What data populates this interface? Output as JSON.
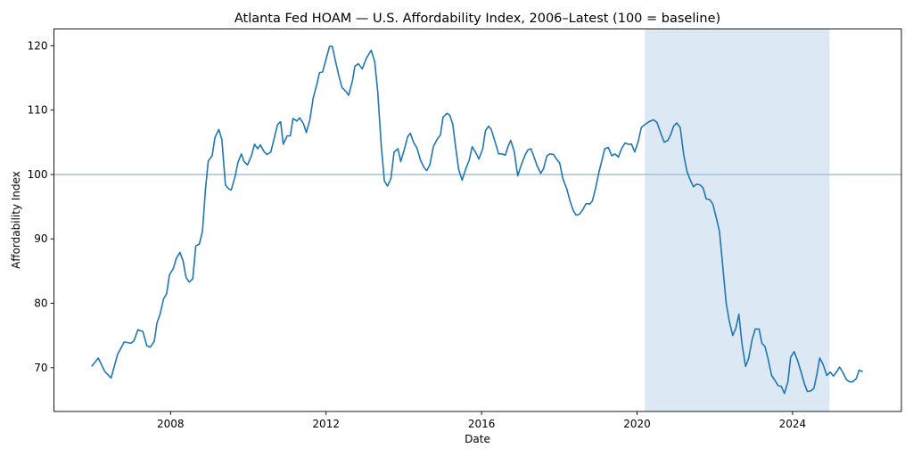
{
  "chart_data": {
    "type": "line",
    "title": "Atlanta Fed HOAM — U.S. Affordability Index, 2006–Latest (100 = baseline)",
    "xlabel": "Date",
    "ylabel": "Affordability Index",
    "xlim": [
      2005.0,
      2026.8
    ],
    "ylim": [
      63.2,
      122.6
    ],
    "xticks": [
      2008,
      2012,
      2016,
      2020,
      2024
    ],
    "xtick_labels": [
      "2008",
      "2012",
      "2016",
      "2020",
      "2024"
    ],
    "yticks": [
      70,
      80,
      90,
      100,
      110,
      120
    ],
    "ytick_labels": [
      "70",
      "80",
      "90",
      "100",
      "110",
      "120"
    ],
    "grid": false,
    "reference_line": {
      "y": 100,
      "color": "#9cc3df"
    },
    "shaded_region": {
      "x_start": 2020.2,
      "x_end": 2024.95,
      "color": "#dce8f3"
    },
    "series": [
      {
        "name": "Affordability Index",
        "color": "#1f77b4",
        "points": [
          [
            2005.97,
            70.2
          ],
          [
            2006.14,
            71.5
          ],
          [
            2006.31,
            69.4
          ],
          [
            2006.47,
            68.4
          ],
          [
            2006.64,
            72.1
          ],
          [
            2006.81,
            74.0
          ],
          [
            2006.98,
            73.8
          ],
          [
            2007.06,
            74.2
          ],
          [
            2007.16,
            75.9
          ],
          [
            2007.29,
            75.6
          ],
          [
            2007.39,
            73.4
          ],
          [
            2007.48,
            73.2
          ],
          [
            2007.58,
            74.1
          ],
          [
            2007.65,
            76.9
          ],
          [
            2007.73,
            78.3
          ],
          [
            2007.82,
            80.7
          ],
          [
            2007.9,
            81.5
          ],
          [
            2007.97,
            84.4
          ],
          [
            2008.07,
            85.4
          ],
          [
            2008.15,
            87.0
          ],
          [
            2008.24,
            87.9
          ],
          [
            2008.32,
            86.6
          ],
          [
            2008.4,
            84.0
          ],
          [
            2008.48,
            83.3
          ],
          [
            2008.57,
            83.8
          ],
          [
            2008.65,
            88.9
          ],
          [
            2008.74,
            89.2
          ],
          [
            2008.82,
            91.2
          ],
          [
            2008.9,
            97.8
          ],
          [
            2008.97,
            102.1
          ],
          [
            2009.07,
            102.9
          ],
          [
            2009.14,
            105.7
          ],
          [
            2009.24,
            107.0
          ],
          [
            2009.32,
            105.4
          ],
          [
            2009.41,
            98.4
          ],
          [
            2009.49,
            97.8
          ],
          [
            2009.56,
            97.6
          ],
          [
            2009.66,
            99.7
          ],
          [
            2009.73,
            101.8
          ],
          [
            2009.82,
            103.2
          ],
          [
            2009.89,
            102.0
          ],
          [
            2009.98,
            101.5
          ],
          [
            2010.08,
            102.9
          ],
          [
            2010.16,
            104.7
          ],
          [
            2010.24,
            104.0
          ],
          [
            2010.31,
            104.6
          ],
          [
            2010.41,
            103.5
          ],
          [
            2010.48,
            103.1
          ],
          [
            2010.58,
            103.5
          ],
          [
            2010.67,
            105.7
          ],
          [
            2010.75,
            107.7
          ],
          [
            2010.83,
            108.2
          ],
          [
            2010.9,
            104.7
          ],
          [
            2011.0,
            106.0
          ],
          [
            2011.08,
            106.0
          ],
          [
            2011.15,
            108.7
          ],
          [
            2011.25,
            108.3
          ],
          [
            2011.32,
            108.8
          ],
          [
            2011.42,
            107.9
          ],
          [
            2011.49,
            106.5
          ],
          [
            2011.58,
            108.4
          ],
          [
            2011.67,
            111.9
          ],
          [
            2011.76,
            113.9
          ],
          [
            2011.83,
            115.8
          ],
          [
            2011.91,
            115.9
          ],
          [
            2012.0,
            117.9
          ],
          [
            2012.09,
            119.9
          ],
          [
            2012.16,
            119.9
          ],
          [
            2012.25,
            117.4
          ],
          [
            2012.33,
            115.3
          ],
          [
            2012.41,
            113.5
          ],
          [
            2012.51,
            112.9
          ],
          [
            2012.58,
            112.3
          ],
          [
            2012.68,
            114.6
          ],
          [
            2012.74,
            116.8
          ],
          [
            2012.83,
            117.2
          ],
          [
            2012.93,
            116.4
          ],
          [
            2013.04,
            118.1
          ],
          [
            2013.16,
            119.3
          ],
          [
            2013.25,
            117.6
          ],
          [
            2013.33,
            112.8
          ],
          [
            2013.42,
            104.5
          ],
          [
            2013.5,
            99.0
          ],
          [
            2013.58,
            98.2
          ],
          [
            2013.67,
            99.4
          ],
          [
            2013.75,
            103.5
          ],
          [
            2013.85,
            104.0
          ],
          [
            2013.92,
            102.0
          ],
          [
            2014.01,
            103.8
          ],
          [
            2014.1,
            105.9
          ],
          [
            2014.17,
            106.4
          ],
          [
            2014.25,
            105.0
          ],
          [
            2014.34,
            104.1
          ],
          [
            2014.43,
            102.2
          ],
          [
            2014.52,
            101.1
          ],
          [
            2014.59,
            100.6
          ],
          [
            2014.67,
            101.5
          ],
          [
            2014.76,
            104.3
          ],
          [
            2014.86,
            105.5
          ],
          [
            2014.94,
            106.1
          ],
          [
            2015.01,
            108.9
          ],
          [
            2015.11,
            109.5
          ],
          [
            2015.18,
            109.2
          ],
          [
            2015.26,
            107.8
          ],
          [
            2015.34,
            104.0
          ],
          [
            2015.41,
            100.8
          ],
          [
            2015.5,
            99.1
          ],
          [
            2015.59,
            100.8
          ],
          [
            2015.68,
            102.2
          ],
          [
            2015.76,
            104.3
          ],
          [
            2015.85,
            103.4
          ],
          [
            2015.93,
            102.4
          ],
          [
            2016.03,
            104.0
          ],
          [
            2016.1,
            106.8
          ],
          [
            2016.18,
            107.5
          ],
          [
            2016.25,
            107.0
          ],
          [
            2016.35,
            105.0
          ],
          [
            2016.44,
            103.2
          ],
          [
            2016.52,
            103.2
          ],
          [
            2016.61,
            103.0
          ],
          [
            2016.69,
            104.5
          ],
          [
            2016.75,
            105.3
          ],
          [
            2016.84,
            103.6
          ],
          [
            2016.93,
            99.8
          ],
          [
            2017.02,
            101.5
          ],
          [
            2017.12,
            103.0
          ],
          [
            2017.19,
            103.8
          ],
          [
            2017.27,
            104.0
          ],
          [
            2017.35,
            102.7
          ],
          [
            2017.42,
            101.5
          ],
          [
            2017.52,
            100.2
          ],
          [
            2017.59,
            100.8
          ],
          [
            2017.68,
            102.9
          ],
          [
            2017.76,
            103.2
          ],
          [
            2017.85,
            103.1
          ],
          [
            2017.94,
            102.3
          ],
          [
            2018.01,
            101.8
          ],
          [
            2018.09,
            99.4
          ],
          [
            2018.19,
            97.8
          ],
          [
            2018.28,
            95.8
          ],
          [
            2018.36,
            94.4
          ],
          [
            2018.43,
            93.7
          ],
          [
            2018.51,
            93.8
          ],
          [
            2018.6,
            94.5
          ],
          [
            2018.69,
            95.5
          ],
          [
            2018.78,
            95.4
          ],
          [
            2018.85,
            95.9
          ],
          [
            2018.93,
            97.8
          ],
          [
            2019.02,
            100.4
          ],
          [
            2019.1,
            102.3
          ],
          [
            2019.17,
            104.0
          ],
          [
            2019.26,
            104.2
          ],
          [
            2019.35,
            102.9
          ],
          [
            2019.43,
            103.2
          ],
          [
            2019.52,
            102.7
          ],
          [
            2019.6,
            104.0
          ],
          [
            2019.69,
            104.9
          ],
          [
            2019.77,
            104.7
          ],
          [
            2019.86,
            104.7
          ],
          [
            2019.94,
            103.5
          ],
          [
            2020.03,
            105.1
          ],
          [
            2020.11,
            107.3
          ],
          [
            2020.21,
            107.8
          ],
          [
            2020.31,
            108.2
          ],
          [
            2020.42,
            108.5
          ],
          [
            2020.51,
            108.1
          ],
          [
            2020.61,
            106.4
          ],
          [
            2020.7,
            105.0
          ],
          [
            2020.79,
            105.3
          ],
          [
            2020.86,
            106.1
          ],
          [
            2020.94,
            107.5
          ],
          [
            2021.02,
            108.0
          ],
          [
            2021.11,
            107.3
          ],
          [
            2021.2,
            103.1
          ],
          [
            2021.28,
            100.6
          ],
          [
            2021.35,
            99.4
          ],
          [
            2021.45,
            98.1
          ],
          [
            2021.53,
            98.5
          ],
          [
            2021.62,
            98.4
          ],
          [
            2021.7,
            97.9
          ],
          [
            2021.78,
            96.2
          ],
          [
            2021.87,
            96.1
          ],
          [
            2021.95,
            95.4
          ],
          [
            2022.04,
            93.2
          ],
          [
            2022.12,
            91.2
          ],
          [
            2022.2,
            86.1
          ],
          [
            2022.29,
            80.1
          ],
          [
            2022.37,
            77.3
          ],
          [
            2022.46,
            75.0
          ],
          [
            2022.54,
            76.1
          ],
          [
            2022.62,
            78.3
          ],
          [
            2022.7,
            73.7
          ],
          [
            2022.79,
            70.2
          ],
          [
            2022.87,
            71.4
          ],
          [
            2022.96,
            74.4
          ],
          [
            2023.04,
            76.0
          ],
          [
            2023.14,
            76.0
          ],
          [
            2023.21,
            73.8
          ],
          [
            2023.29,
            73.3
          ],
          [
            2023.37,
            71.4
          ],
          [
            2023.46,
            68.8
          ],
          [
            2023.56,
            67.9
          ],
          [
            2023.63,
            67.2
          ],
          [
            2023.71,
            67.1
          ],
          [
            2023.79,
            66.0
          ],
          [
            2023.88,
            67.8
          ],
          [
            2023.95,
            71.6
          ],
          [
            2024.04,
            72.5
          ],
          [
            2024.13,
            71.1
          ],
          [
            2024.22,
            69.3
          ],
          [
            2024.31,
            67.4
          ],
          [
            2024.38,
            66.3
          ],
          [
            2024.47,
            66.4
          ],
          [
            2024.55,
            66.8
          ],
          [
            2024.63,
            69.1
          ],
          [
            2024.7,
            71.5
          ],
          [
            2024.78,
            70.6
          ],
          [
            2024.88,
            68.8
          ],
          [
            2024.97,
            69.3
          ],
          [
            2025.05,
            68.7
          ],
          [
            2025.14,
            69.4
          ],
          [
            2025.21,
            70.1
          ],
          [
            2025.3,
            69.2
          ],
          [
            2025.39,
            68.1
          ],
          [
            2025.47,
            67.8
          ],
          [
            2025.54,
            67.8
          ],
          [
            2025.64,
            68.3
          ],
          [
            2025.71,
            69.6
          ],
          [
            2025.81,
            69.4
          ]
        ]
      }
    ]
  }
}
